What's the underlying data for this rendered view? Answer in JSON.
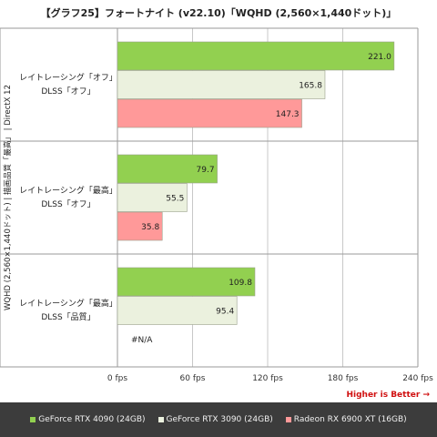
{
  "chart_data": {
    "type": "bar",
    "orientation": "horizontal",
    "title": "【グラフ25】フォートナイト (v22.10)「WQHD (2,560×1,440ドット)」",
    "ylabel": "WQHD (2,560×1,440ドット) | 描画品質「最高」 | DirectX 12",
    "xlabel": "",
    "xlim": [
      0,
      240
    ],
    "xticks": [
      "0 fps",
      "60 fps",
      "120 fps",
      "180 fps",
      "240 fps"
    ],
    "grid": true,
    "groups": [
      {
        "label_line1": "レイトレーシング「オフ」",
        "label_line2": "DLSS「オフ」"
      },
      {
        "label_line1": "レイトレーシング「最高」",
        "label_line2": "DLSS「オフ」"
      },
      {
        "label_line1": "レイトレーシング「最高」",
        "label_line2": "DLSS「品質」"
      }
    ],
    "series": [
      {
        "name": "GeForce RTX 4090 (24GB)",
        "color": "#92d050",
        "values": [
          221.0,
          79.7,
          109.8
        ],
        "labels": [
          "221.0",
          "79.7",
          "109.8"
        ]
      },
      {
        "name": "GeForce RTX 3090 (24GB)",
        "color": "#ebf1de",
        "values": [
          165.8,
          55.5,
          95.4
        ],
        "labels": [
          "165.8",
          "55.5",
          "95.4"
        ]
      },
      {
        "name": "Radeon RX 6900 XT (16GB)",
        "color": "#ff9999",
        "values": [
          147.3,
          35.8,
          null
        ],
        "labels": [
          "147.3",
          "35.8",
          "#N/A"
        ]
      }
    ],
    "annotation": "Higher is Better →",
    "legend_position": "bottom"
  }
}
